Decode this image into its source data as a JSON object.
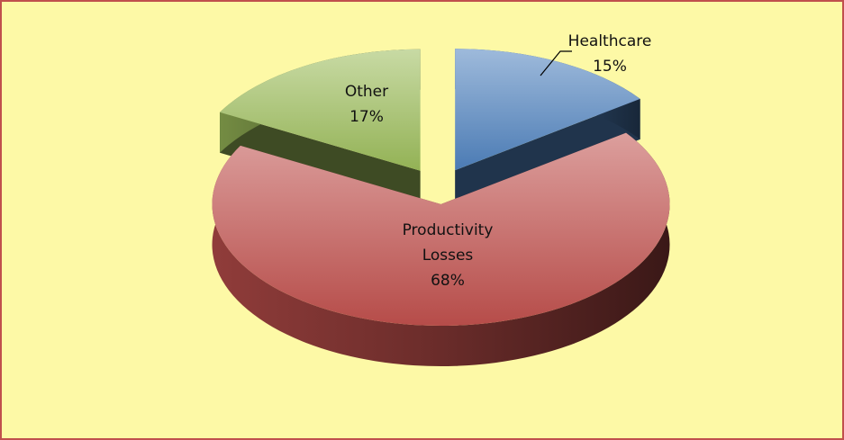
{
  "chart_data": {
    "type": "pie",
    "title": null,
    "categories": [
      "Healthcare",
      "Productivity Losses",
      "Other"
    ],
    "values": [
      15,
      68,
      17
    ],
    "value_labels": [
      "15%",
      "68%",
      "17%"
    ],
    "colors": [
      "#4f81bd",
      "#c0504d",
      "#9bbb59"
    ],
    "three_d": true,
    "exploded": true
  }
}
